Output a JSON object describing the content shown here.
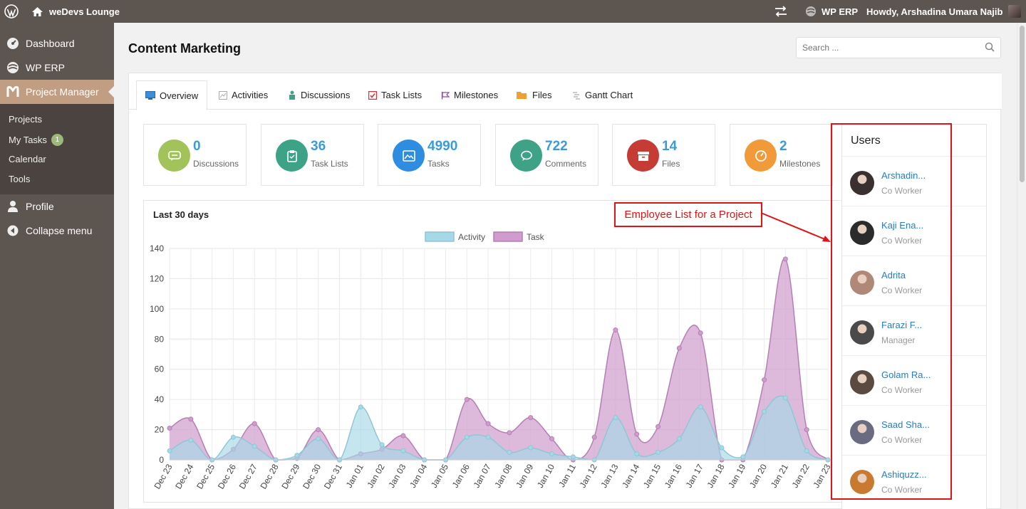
{
  "adminbar": {
    "site_name": "weDevs Lounge",
    "erp_label": "WP ERP",
    "howdy": "Howdy, Arshadina Umara Najib"
  },
  "sidebar": {
    "items": [
      {
        "label": "Dashboard",
        "icon": "dashboard-icon"
      },
      {
        "label": "WP ERP",
        "icon": "erp-icon"
      },
      {
        "label": "Project Manager",
        "icon": "project-manager-icon"
      },
      {
        "label": "Profile",
        "icon": "user-icon"
      },
      {
        "label": "Collapse menu",
        "icon": "collapse-icon"
      }
    ],
    "submenu": [
      {
        "label": "Projects"
      },
      {
        "label": "My Tasks",
        "badge": "1"
      },
      {
        "label": "Calendar"
      },
      {
        "label": "Tools"
      }
    ]
  },
  "page": {
    "title": "Content Marketing",
    "search_placeholder": "Search ..."
  },
  "tabs": [
    {
      "label": "Overview",
      "icon": "overview-icon"
    },
    {
      "label": "Activities",
      "icon": "activities-icon"
    },
    {
      "label": "Discussions",
      "icon": "discussions-icon"
    },
    {
      "label": "Task Lists",
      "icon": "task-lists-icon"
    },
    {
      "label": "Milestones",
      "icon": "milestones-icon"
    },
    {
      "label": "Files",
      "icon": "files-icon"
    },
    {
      "label": "Gantt Chart",
      "icon": "gantt-chart-icon"
    }
  ],
  "stats": [
    {
      "value": "0",
      "label": "Discussions",
      "color": "#a2c25a",
      "icon": "discussion-icon"
    },
    {
      "value": "36",
      "label": "Task Lists",
      "color": "#3ea386",
      "icon": "clipboard-icon"
    },
    {
      "value": "4990",
      "label": "Tasks",
      "color": "#2e8de0",
      "icon": "image-icon"
    },
    {
      "value": "722",
      "label": "Comments",
      "color": "#3ea386",
      "icon": "comment-icon"
    },
    {
      "value": "14",
      "label": "Files",
      "color": "#c43c33",
      "icon": "archive-icon"
    },
    {
      "value": "2",
      "label": "Milestones",
      "color": "#f09a3a",
      "icon": "gauge-icon"
    }
  ],
  "chart_title": "Last 30 days",
  "chart_data": {
    "type": "area",
    "categories": [
      "Dec 23",
      "Dec 24",
      "Dec 25",
      "Dec 26",
      "Dec 27",
      "Dec 28",
      "Dec 29",
      "Dec 30",
      "Dec 31",
      "Jan 01",
      "Jan 02",
      "Jan 03",
      "Jan 04",
      "Jan 05",
      "Jan 06",
      "Jan 07",
      "Jan 08",
      "Jan 09",
      "Jan 10",
      "Jan 11",
      "Jan 12",
      "Jan 13",
      "Jan 14",
      "Jan 15",
      "Jan 16",
      "Jan 17",
      "Jan 18",
      "Jan 19",
      "Jan 20",
      "Jan 21",
      "Jan 22",
      "Jan 23"
    ],
    "series": [
      {
        "name": "Activity",
        "color": "#a6d9e6",
        "values": [
          6,
          13,
          0,
          15,
          9,
          0,
          3,
          14,
          0,
          35,
          10,
          6,
          0,
          0,
          15,
          15,
          5,
          8,
          4,
          2,
          0,
          28,
          4,
          5,
          14,
          35,
          8,
          2,
          32,
          41,
          6,
          0
        ]
      },
      {
        "name": "Task",
        "color": "#cf9ccd",
        "values": [
          21,
          27,
          0,
          7,
          24,
          0,
          1,
          20,
          0,
          4,
          7,
          16,
          0,
          0,
          40,
          24,
          18,
          28,
          14,
          0,
          15,
          86,
          17,
          22,
          74,
          84,
          0,
          0,
          53,
          133,
          20,
          0
        ]
      }
    ],
    "ylim": [
      0,
      140
    ],
    "yticks": [
      0,
      20,
      40,
      60,
      80,
      100,
      120,
      140
    ],
    "legend": "top-center",
    "grid": true
  },
  "users": {
    "title": "Users",
    "list": [
      {
        "name": "Arshadin...",
        "role": "Co Worker",
        "avatar_color": "#3a3030"
      },
      {
        "name": "Kaji Ena...",
        "role": "Co Worker",
        "avatar_color": "#2b2b2b"
      },
      {
        "name": "Adrita",
        "role": "Co Worker",
        "avatar_color": "#b08878"
      },
      {
        "name": "Farazi F...",
        "role": "Manager",
        "avatar_color": "#4a4a4a"
      },
      {
        "name": "Golam Ra...",
        "role": "Co Worker",
        "avatar_color": "#5a4a40"
      },
      {
        "name": "Saad Sha...",
        "role": "Co Worker",
        "avatar_color": "#6a6a80"
      },
      {
        "name": "Ashiquzz...",
        "role": "Co Worker",
        "avatar_color": "#c87a30"
      }
    ]
  },
  "annotation": {
    "label": "Employee List for a Project",
    "color": "#e01414"
  }
}
